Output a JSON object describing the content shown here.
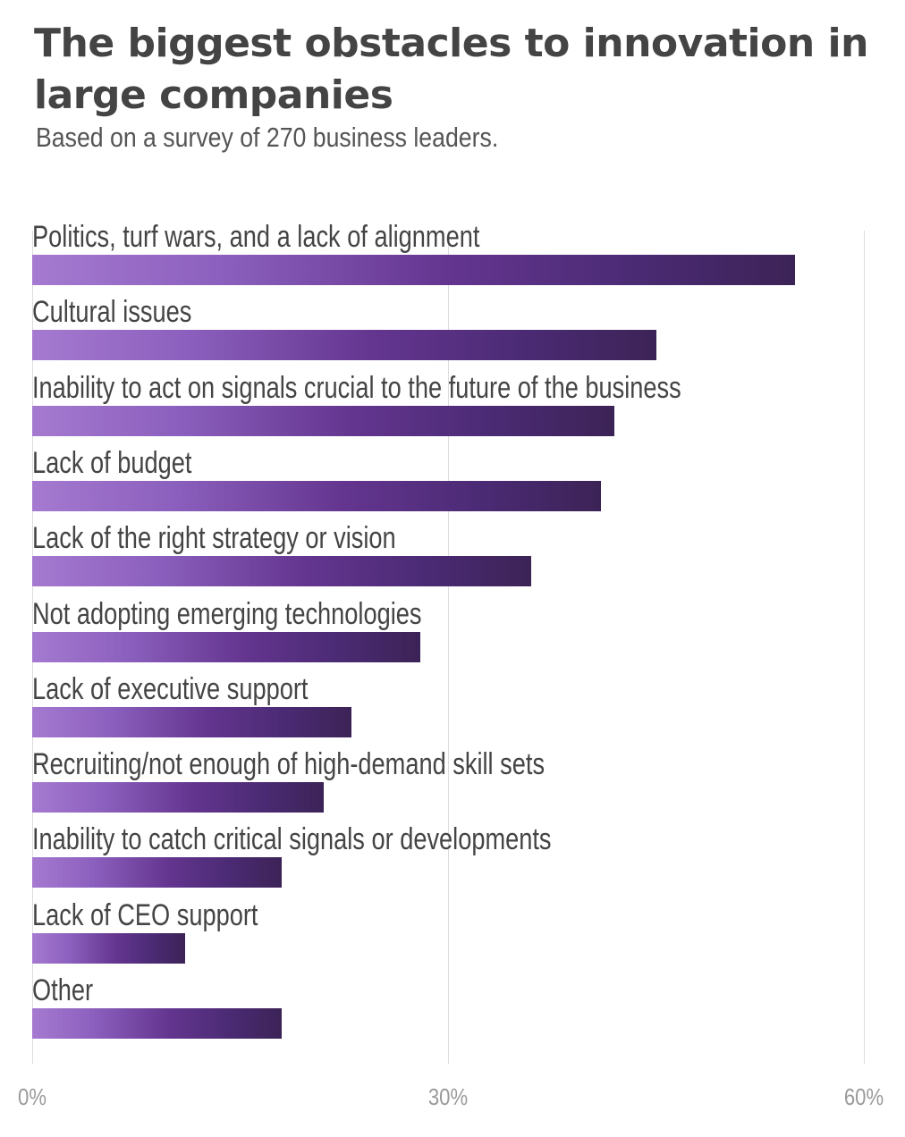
{
  "chart_data": {
    "type": "bar",
    "orientation": "horizontal",
    "title": "The biggest obstacles to innovation in large companies",
    "subtitle": "Based on a survey of 270 business leaders.",
    "categories": [
      "Politics, turf wars, and a lack of alignment",
      "Cultural issues",
      "Inability to act on signals crucial to the future of the business",
      "Lack of budget",
      "Lack of the right strategy or vision",
      "Not adopting emerging technologies",
      "Lack of executive support",
      "Recruiting/not enough of high-demand skill sets",
      "Inability to catch critical signals or developments",
      "Lack of CEO support",
      "Other"
    ],
    "values": [
      55,
      45,
      42,
      41,
      36,
      28,
      23,
      21,
      18,
      11,
      18
    ],
    "xlim": [
      0,
      60
    ],
    "xticks": [
      0,
      30,
      60
    ],
    "xtick_labels": [
      "0%",
      "30%",
      "60%"
    ],
    "grid": true,
    "colors": {
      "bar_start": "#a57ad0",
      "bar_mid": "#63358f",
      "bar_end": "#3c2356",
      "grid": "#dddddd"
    }
  }
}
